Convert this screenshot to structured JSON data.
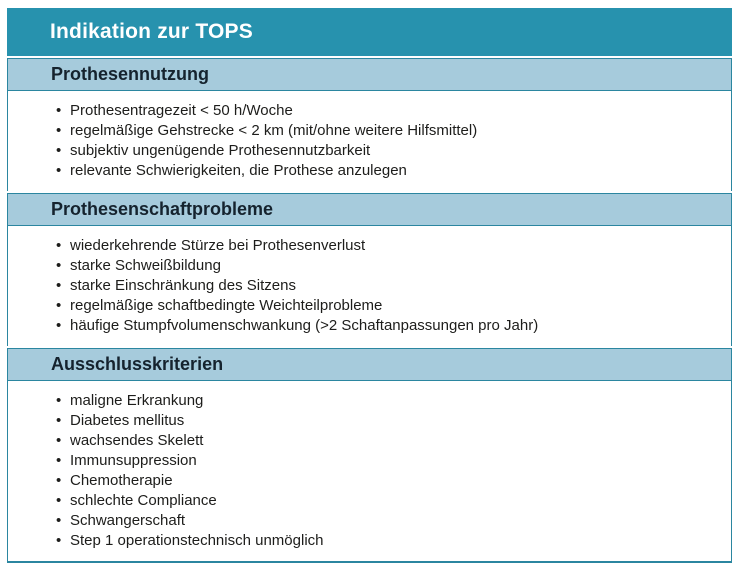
{
  "table": {
    "title": "Indikation zur TOPS",
    "sections": [
      {
        "header": "Prothesennutzung",
        "items": [
          "Prothesentragezeit < 50 h/Woche",
          "regelmäßige Gehstrecke < 2 km (mit/ohne weitere Hilfsmittel)",
          "subjektiv ungenügende Prothesennutzbarkeit",
          "relevante Schwierigkeiten, die Prothese anzulegen"
        ]
      },
      {
        "header": "Prothesenschaftprobleme",
        "items": [
          "wiederkehrende Stürze bei Prothesenverlust",
          "starke Schweißbildung",
          "starke Einschränkung des Sitzens",
          "regelmäßige schaftbedingte Weichteilprobleme",
          "häufige Stumpfvolumenschwankung (>2 Schaftanpassungen pro Jahr)"
        ]
      },
      {
        "header": "Ausschlusskriterien",
        "items": [
          "maligne Erkrankung",
          "Diabetes mellitus",
          "wachsendes Skelett",
          "Immunsuppression",
          "Chemotherapie",
          "schlechte Compliance",
          "Schwangerschaft",
          "Step 1 operationstechnisch unmöglich"
        ]
      }
    ]
  },
  "colors": {
    "header-bg": "#2792ae",
    "band-bg": "#a6cbdc",
    "border-teal": "#2b86a0",
    "title-color": "#ffffff",
    "band-text": "#15232e",
    "body-text": "#1d1d1b"
  }
}
